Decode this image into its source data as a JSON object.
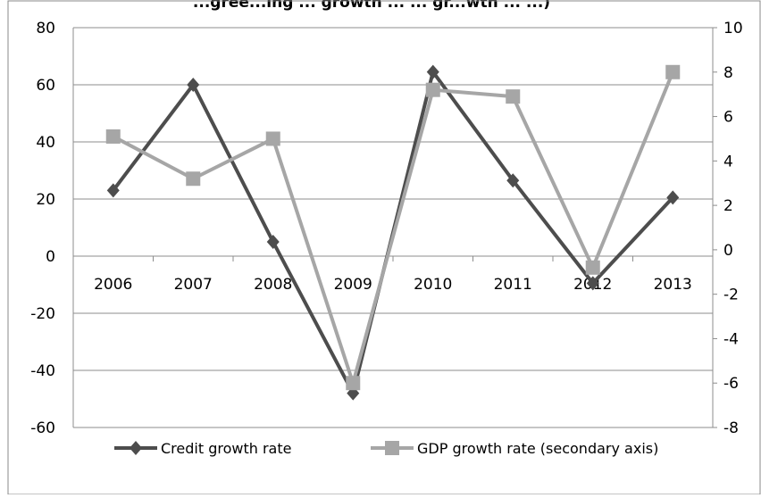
{
  "chart_data": {
    "type": "line",
    "title": "...gree...ing ... growth ... ... gr...wth ... ...)",
    "categories": [
      "2006",
      "2007",
      "2008",
      "2009",
      "2010",
      "2011",
      "2012",
      "2013"
    ],
    "series": [
      {
        "name": "Credit growth rate",
        "axis": "primary",
        "color": "#4d4d4d",
        "marker": "diamond",
        "values": [
          23,
          60,
          5,
          -48,
          64.5,
          26.5,
          -9.5,
          20.5
        ]
      },
      {
        "name": "GDP growth rate (secondary axis)",
        "axis": "secondary",
        "color": "#a6a6a6",
        "marker": "square",
        "values": [
          5.1,
          3.2,
          5.0,
          -6.0,
          7.2,
          6.9,
          -0.8,
          8.0
        ]
      }
    ],
    "y_primary": {
      "min": -60,
      "max": 80,
      "ticks": [
        80,
        60,
        40,
        20,
        0,
        -20,
        -40,
        -60
      ]
    },
    "y_secondary": {
      "min": -8,
      "max": 10,
      "ticks": [
        10,
        8,
        6,
        4,
        2,
        0,
        -2,
        -4,
        -6,
        -8
      ]
    },
    "grid": true,
    "legend_position": "bottom"
  }
}
